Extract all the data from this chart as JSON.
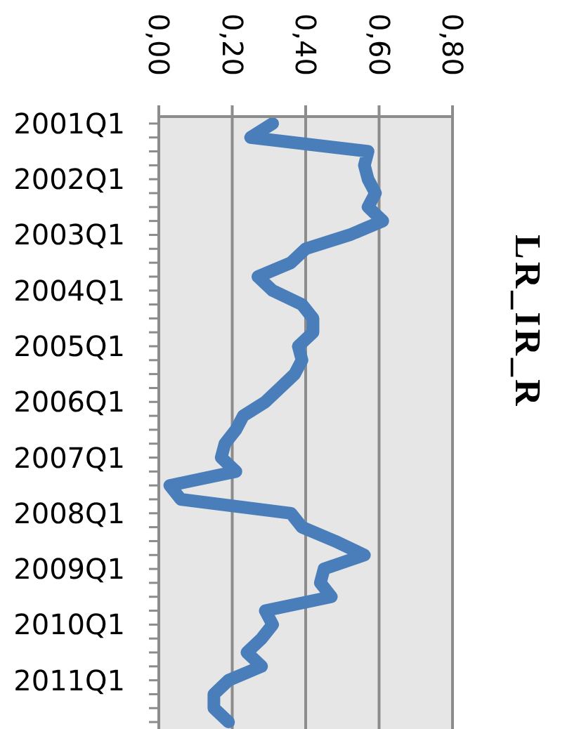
{
  "chart_data": {
    "type": "line",
    "title": "LR_IR_R",
    "orientation": "horizontal",
    "categories": [
      "2001Q1",
      null,
      null,
      null,
      "2002Q1",
      null,
      null,
      null,
      "2003Q1",
      null,
      null,
      null,
      "2004Q1",
      null,
      null,
      null,
      "2005Q1",
      null,
      null,
      null,
      "2006Q1",
      null,
      null,
      null,
      "2007Q1",
      null,
      null,
      null,
      "2008Q1",
      null,
      null,
      null,
      "2009Q1",
      null,
      null,
      null,
      "2010Q1",
      null,
      null,
      null,
      "2011Q1",
      null,
      null,
      null
    ],
    "values": [
      0.31,
      0.25,
      0.57,
      0.56,
      0.57,
      0.59,
      0.57,
      0.61,
      0.52,
      0.4,
      0.36,
      0.27,
      0.31,
      0.39,
      0.42,
      0.42,
      0.38,
      0.39,
      0.37,
      0.33,
      0.29,
      0.23,
      0.21,
      0.18,
      0.17,
      0.21,
      0.03,
      0.06,
      0.36,
      0.39,
      0.48,
      0.56,
      0.45,
      0.44,
      0.47,
      0.29,
      0.31,
      0.28,
      0.24,
      0.28,
      0.19,
      0.15,
      0.15,
      0.19
    ],
    "color": "#4a7ebb",
    "xlim": [
      0,
      0.8
    ],
    "xticks": [
      {
        "value": 0,
        "label": "0,00"
      },
      {
        "value": 0.2,
        "label": "0,20"
      },
      {
        "value": 0.4,
        "label": "0,40"
      },
      {
        "value": 0.6,
        "label": "0,60"
      },
      {
        "value": 0.8,
        "label": "0,80"
      }
    ],
    "grid": "x",
    "marker": "none"
  }
}
